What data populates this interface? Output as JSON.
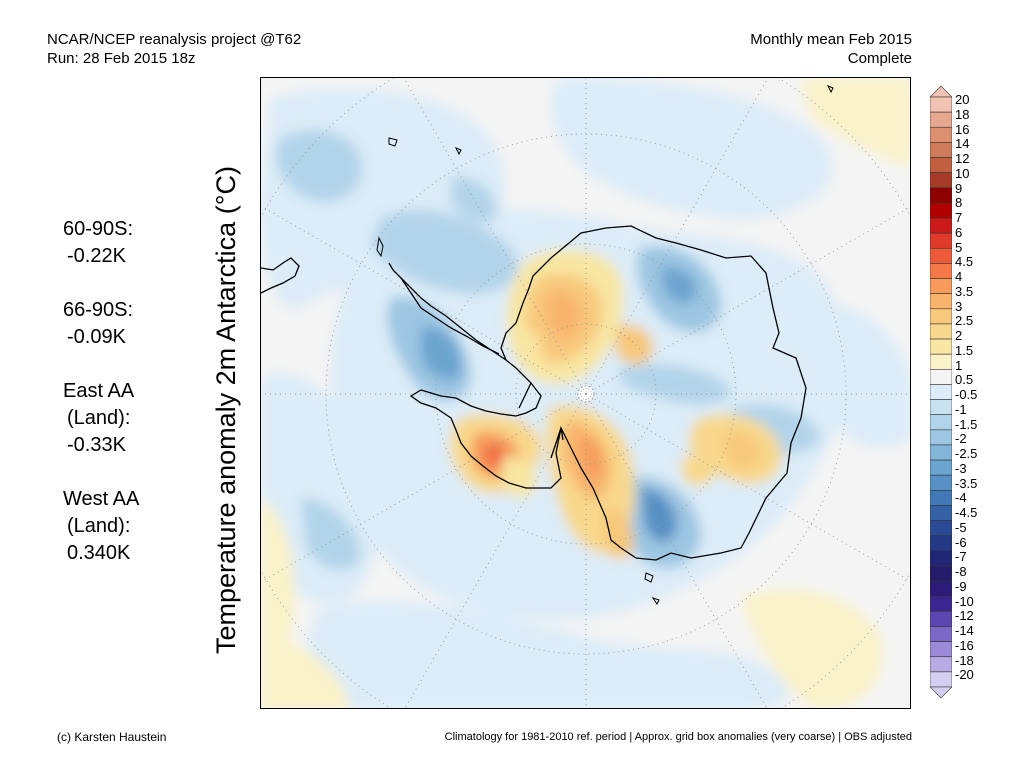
{
  "header": {
    "line1_left": "NCAR/NCEP reanalysis project @T62",
    "line2_left": "Run: 28 Feb 2015 18z",
    "line1_right": "Monthly mean Feb 2015",
    "line2_right": "Complete"
  },
  "y_label": "Temperature anomaly 2m Antarctica (°C)",
  "stats": [
    {
      "label_lines": [
        "60-90S:"
      ],
      "value": "-0.22K"
    },
    {
      "label_lines": [
        "66-90S:"
      ],
      "value": "-0.09K"
    },
    {
      "label_lines": [
        "East AA",
        "(Land):"
      ],
      "value": "-0.33K"
    },
    {
      "label_lines": [
        "West AA",
        "(Land):"
      ],
      "value": "0.340K"
    }
  ],
  "colorbar": {
    "labels": [
      "20",
      "18",
      "16",
      "14",
      "12",
      "10",
      "9",
      "8",
      "7",
      "6",
      "5",
      "4.5",
      "4",
      "3.5",
      "3",
      "2.5",
      "2",
      "1.5",
      "1",
      "0.5",
      "-0.5",
      "-1",
      "-1.5",
      "-2",
      "-2.5",
      "-3",
      "-3.5",
      "-4",
      "-4.5",
      "-5",
      "-6",
      "-7",
      "-8",
      "-9",
      "-10",
      "-12",
      "-14",
      "-16",
      "-18",
      "-20"
    ],
    "colors": [
      "#f2c2b2",
      "#e8a890",
      "#dc9070",
      "#cf7a58",
      "#c0603e",
      "#a83a28",
      "#8c0000",
      "#b00000",
      "#cc1a1a",
      "#e03a2a",
      "#ee5a3a",
      "#f47848",
      "#f79a5a",
      "#f8b46c",
      "#f8c87c",
      "#f8d88c",
      "#f8e6a2",
      "#faf2c8",
      "#f4f4f4",
      "#dcecf8",
      "#c8e2f2",
      "#b2d4ea",
      "#9cc6e2",
      "#84b6da",
      "#6ca4d0",
      "#5690c4",
      "#4278b6",
      "#3460a6",
      "#2a4a96",
      "#243a86",
      "#202676",
      "#241c6a",
      "#2c1a78",
      "#3a2690",
      "#5a48b0",
      "#7a68c8",
      "#9a8ad8",
      "#b8aae4",
      "#d4cef0"
    ],
    "top_arrow_color": "#f2c2b2",
    "bottom_arrow_color": "#d4cef0"
  },
  "footer": {
    "left": "(c) Karsten Haustein",
    "right": "Climatology for 1981-2010 ref. period | Approx. grid box anomalies (very coarse) | OBS adjusted"
  },
  "map": {
    "background_color": "#f4f4f4",
    "continent_outline_color": "#000000",
    "graticule_color": "#999999"
  }
}
